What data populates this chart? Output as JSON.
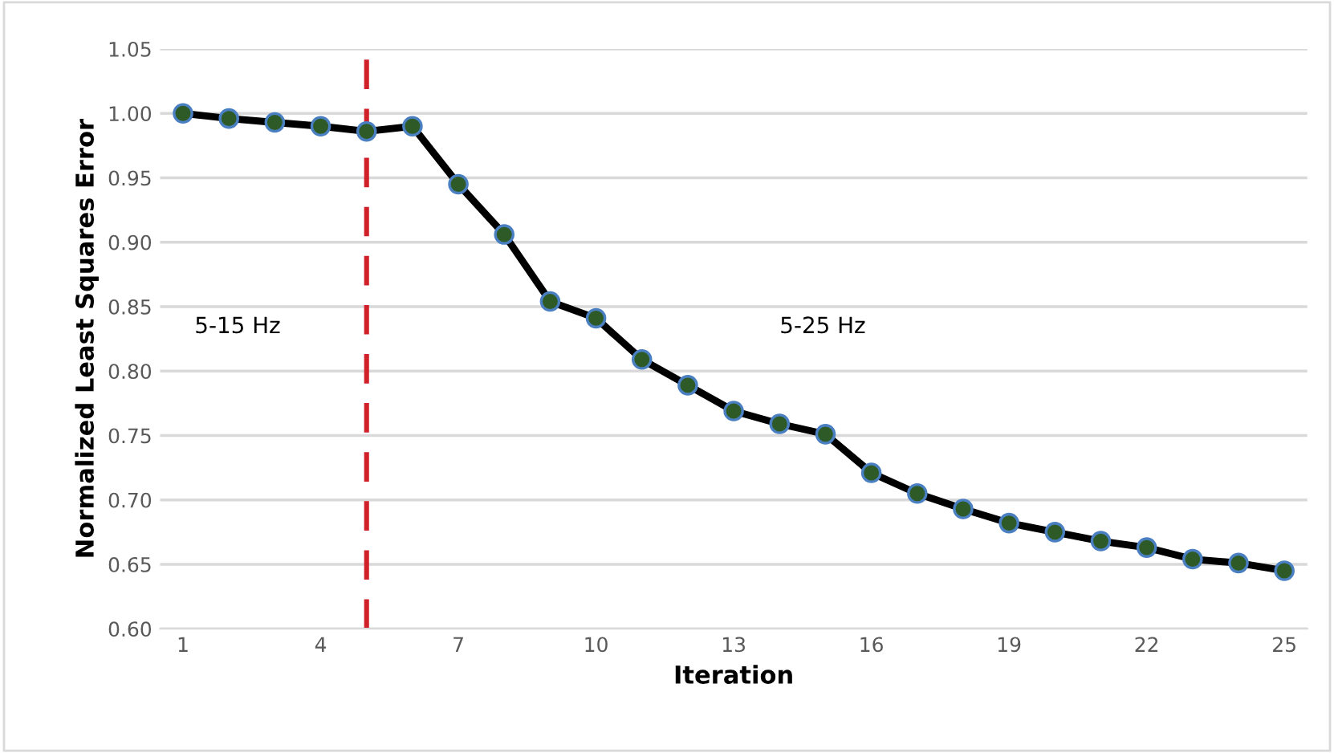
{
  "chart_data": {
    "type": "line",
    "xlabel": "Iteration",
    "ylabel": "Normalized Least Squares Error",
    "x": [
      1,
      2,
      3,
      4,
      5,
      6,
      7,
      8,
      9,
      10,
      11,
      12,
      13,
      14,
      15,
      16,
      17,
      18,
      19,
      20,
      21,
      22,
      23,
      24,
      25
    ],
    "series": [
      {
        "color": "#000000",
        "values": [
          1.0,
          0.996,
          0.993,
          0.99,
          0.986,
          0.99,
          0.945,
          0.906,
          0.854,
          0.841,
          0.809,
          0.789,
          0.769,
          0.759,
          0.751,
          0.721,
          0.705,
          0.693,
          0.682,
          0.675,
          0.668,
          0.663,
          0.654,
          0.651,
          0.645
        ]
      }
    ],
    "marker": "circle",
    "line_style": "solid",
    "xlim": [
      0.5,
      25.5
    ],
    "xticks": [
      1,
      4,
      7,
      10,
      13,
      16,
      19,
      22,
      25
    ],
    "ylim": [
      0.6,
      1.05
    ],
    "yticks": [
      {
        "value": 0.6,
        "label": "0.60"
      },
      {
        "value": 0.65,
        "label": "0.65"
      },
      {
        "value": 0.7,
        "label": "0.70"
      },
      {
        "value": 0.75,
        "label": "0.75"
      },
      {
        "value": 0.8,
        "label": "0.80"
      },
      {
        "value": 0.85,
        "label": "0.85"
      },
      {
        "value": 0.9,
        "label": "0.90"
      },
      {
        "value": 0.95,
        "label": "0.95"
      },
      {
        "value": 1.0,
        "label": "1.00"
      },
      {
        "value": 1.05,
        "label": "1.05"
      }
    ],
    "grid": "y",
    "ref_lines": [
      {
        "axis": "x",
        "value": 5,
        "color": "#d0202a",
        "line_style": "dashed"
      }
    ],
    "annotations": [
      "5-15 Hz",
      "5-25 Hz"
    ]
  }
}
